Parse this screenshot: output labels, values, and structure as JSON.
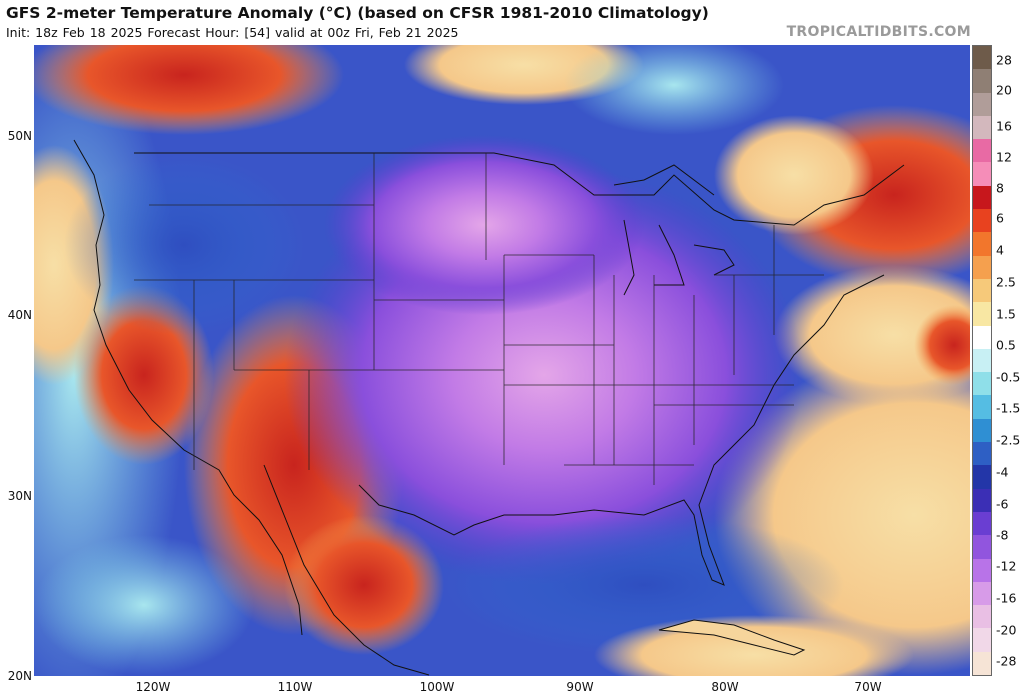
{
  "header": {
    "title": "GFS 2-meter Temperature Anomaly (°C) (based on CFSR 1981-2010 Climatology)",
    "subtitle": "Init: 18z Feb 18 2025   Forecast Hour: [54]   valid at 00z Fri, Feb 21 2025",
    "brand": "TROPICALTIDBITS.COM"
  },
  "map": {
    "lat_labels": [
      "50N",
      "40N",
      "30N",
      "20N"
    ],
    "lon_labels": [
      "120W",
      "110W",
      "100W",
      "90W",
      "80W",
      "70W"
    ]
  },
  "colorbar": {
    "labels": [
      "28",
      "20",
      "16",
      "12",
      "8",
      "6",
      "4",
      "2.5",
      "1.5",
      "0.5",
      "-0.5",
      "-1.5",
      "-2.5",
      "-4",
      "-6",
      "-8",
      "-12",
      "-16",
      "-20",
      "-28"
    ],
    "colors": [
      "#6e5b4a",
      "#8f7f74",
      "#b09d99",
      "#d3b8bd",
      "#e86aa4",
      "#f58db8",
      "#c7171c",
      "#e8421f",
      "#f2762c",
      "#f5a04e",
      "#f6c97a",
      "#f8e7a3",
      "#ffffff",
      "#c8f0f4",
      "#8fdfe9",
      "#55bde3",
      "#2f8fd3",
      "#2e5fc4",
      "#2336a8",
      "#3b2fb5",
      "#6a3ed2",
      "#9155de",
      "#b873e8",
      "#d79be8",
      "#e9bfe4",
      "#f1d8e8",
      "#f6e4d6"
    ]
  }
}
